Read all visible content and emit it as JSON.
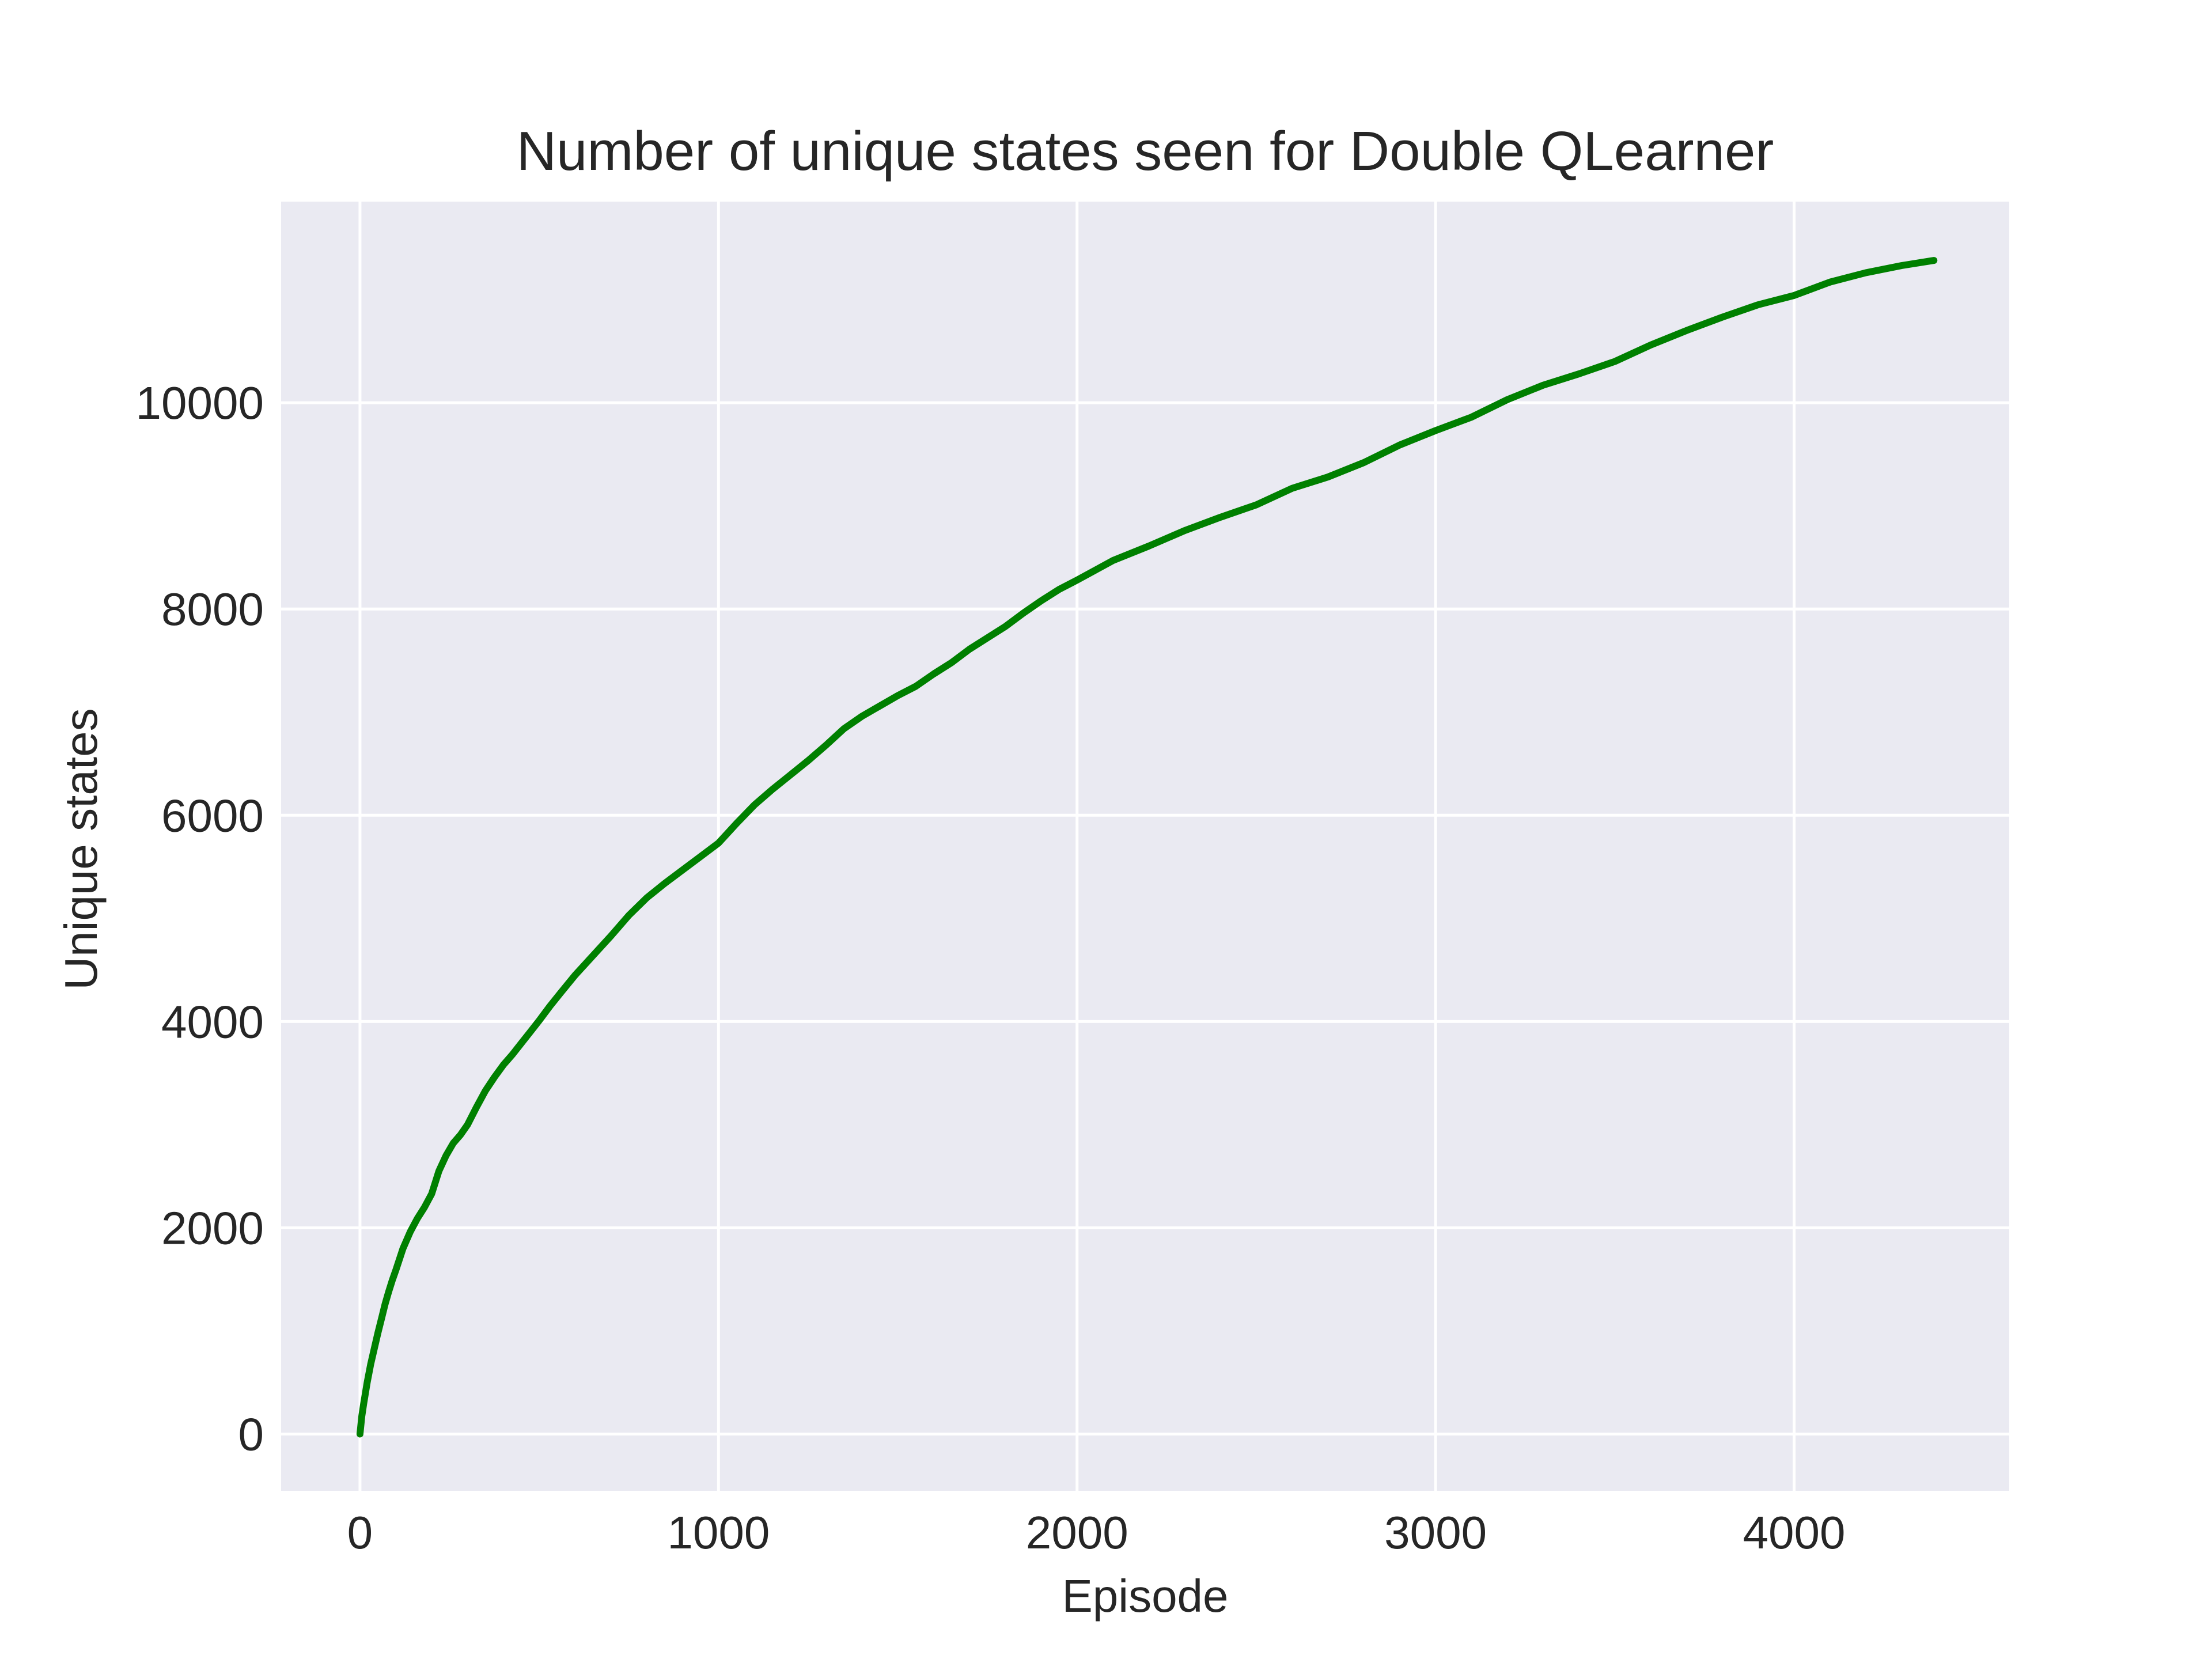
{
  "chart_data": {
    "type": "line",
    "title": "Number of unique states seen for Double QLearner",
    "xlabel": "Episode",
    "ylabel": "Unique states",
    "xlim": [
      -220,
      4600
    ],
    "ylim": [
      -550,
      11950
    ],
    "xticks": [
      0,
      1000,
      2000,
      3000,
      4000
    ],
    "yticks": [
      0,
      2000,
      4000,
      6000,
      8000,
      10000
    ],
    "grid": true,
    "colors": {
      "plot_background": "#eaeaf2",
      "grid": "#ffffff",
      "line": "#008000"
    },
    "series": [
      {
        "color": "#008000",
        "x": [
          0,
          5,
          10,
          20,
          30,
          40,
          50,
          60,
          70,
          80,
          90,
          100,
          120,
          140,
          160,
          180,
          200,
          220,
          240,
          260,
          280,
          300,
          325,
          350,
          375,
          400,
          425,
          450,
          475,
          500,
          530,
          560,
          600,
          650,
          700,
          750,
          800,
          850,
          900,
          950,
          1000,
          1050,
          1100,
          1150,
          1200,
          1250,
          1300,
          1350,
          1400,
          1450,
          1500,
          1550,
          1600,
          1650,
          1700,
          1750,
          1800,
          1850,
          1900,
          1950,
          2000,
          2100,
          2200,
          2300,
          2400,
          2500,
          2600,
          2700,
          2800,
          2900,
          3000,
          3100,
          3200,
          3300,
          3400,
          3500,
          3600,
          3700,
          3800,
          3900,
          4000,
          4100,
          4200,
          4300,
          4390
        ],
        "y": [
          0,
          170,
          290,
          500,
          680,
          830,
          980,
          1120,
          1260,
          1380,
          1490,
          1590,
          1800,
          1960,
          2090,
          2200,
          2330,
          2550,
          2700,
          2820,
          2900,
          3000,
          3170,
          3330,
          3460,
          3580,
          3680,
          3790,
          3900,
          4010,
          4150,
          4280,
          4450,
          4640,
          4830,
          5030,
          5200,
          5340,
          5470,
          5600,
          5730,
          5920,
          6100,
          6250,
          6390,
          6530,
          6680,
          6840,
          6960,
          7060,
          7160,
          7250,
          7370,
          7480,
          7610,
          7720,
          7830,
          7960,
          8080,
          8190,
          8280,
          8470,
          8610,
          8760,
          8890,
          9010,
          9170,
          9280,
          9420,
          9590,
          9730,
          9860,
          10030,
          10170,
          10280,
          10400,
          10560,
          10700,
          10830,
          10950,
          11040,
          11170,
          11260,
          11330,
          11380
        ]
      }
    ]
  }
}
